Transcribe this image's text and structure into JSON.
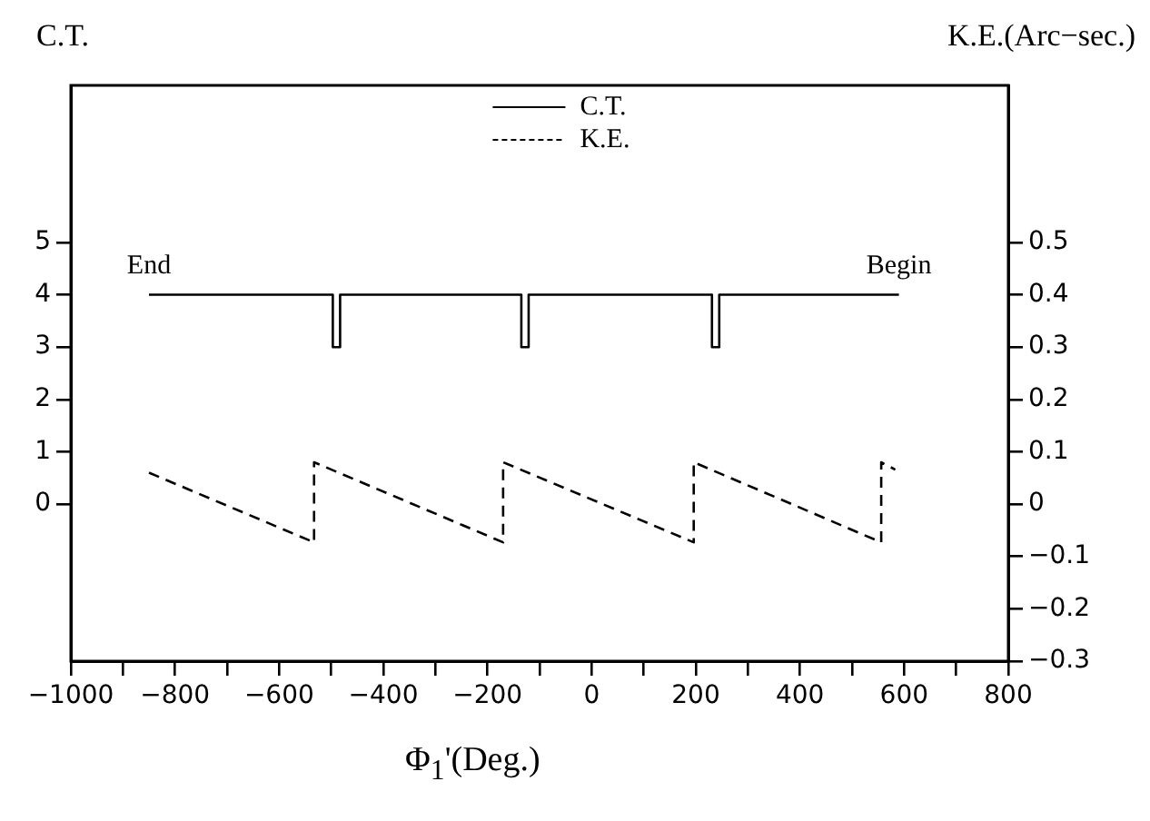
{
  "chart_data": {
    "type": "line",
    "ylabel": "C.T.",
    "y2label": "K.E.(Arc−sec.)",
    "xlabel": "Φ$_{1}$'(Deg.)",
    "xlim": [
      -1000,
      800
    ],
    "xticks": [
      -1000,
      {
        "value": -900,
        "label": null
      },
      -800,
      {
        "value": -700,
        "label": null
      },
      -600,
      {
        "value": -500,
        "label": null
      },
      -400,
      {
        "value": -300,
        "label": null
      },
      -200,
      {
        "value": -100,
        "label": null
      },
      0,
      {
        "value": 100,
        "label": null
      },
      200,
      {
        "value": 300,
        "label": null
      },
      400,
      {
        "value": 500,
        "label": null
      },
      600,
      {
        "value": 700,
        "label": null
      },
      800
    ],
    "ylim": [
      -3,
      8
    ],
    "yticks": [
      0,
      1,
      2,
      3,
      4,
      5
    ],
    "y2lim": [
      -0.3,
      0.8
    ],
    "y2ticks": [
      -0.3,
      -0.2,
      -0.1,
      0,
      0.1,
      0.2,
      0.3,
      0.4,
      0.5
    ],
    "grid": false,
    "legend": "top",
    "marker": "none",
    "annotations": [
      {
        "text": "End",
        "x": -850,
        "y": 4
      },
      {
        "text": "Begin",
        "x": 590,
        "y": 4
      }
    ],
    "series": [
      {
        "name": "C.T.",
        "color": "#000000",
        "line_style": "solid",
        "x": [
          -850,
          -497,
          -497,
          -483,
          -483,
          -135,
          -135,
          -121,
          -121,
          231,
          231,
          245,
          245,
          590
        ],
        "values": [
          4,
          4,
          3,
          3,
          4,
          4,
          3,
          3,
          4,
          4,
          3,
          3,
          4,
          4
        ]
      },
      {
        "name": "K.E.",
        "color": "#000000",
        "line_style": "dashed",
        "axis": "y2",
        "x": [
          -850,
          -533,
          -533,
          -170,
          -170,
          196,
          196,
          556,
          556,
          583
        ],
        "values": [
          0.06,
          -0.073,
          0.08,
          -0.073,
          0.08,
          -0.073,
          0.08,
          -0.073,
          0.08,
          0.066
        ]
      }
    ]
  }
}
